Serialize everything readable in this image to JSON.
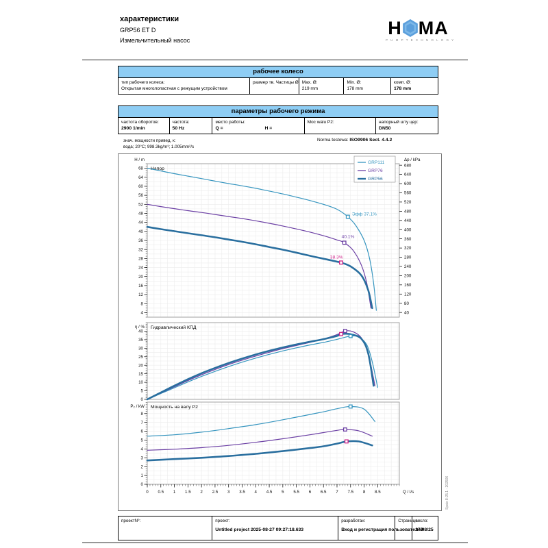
{
  "header": {
    "title": "характеристики",
    "model": "GRP56 ET D",
    "subtitle": "Измельчительный насос",
    "logo": {
      "left": "H",
      "right": "MA",
      "tagline": "P U M P   T E C H N O L O G Y",
      "hex_color": "#5b9fdc"
    }
  },
  "impeller": {
    "title": "рабочее колесо",
    "type_label": "тип рабочего колеса:",
    "type_value": "Открытая многолопастная с режущим устройством",
    "particle_label": "размер тв. Частицы   Ø:",
    "max_label": "Max.   Ø:",
    "max_value": "219 mm",
    "min_label": "Min.   Ø:",
    "min_value": "178 mm",
    "comp_label": "комп.   Ø:",
    "comp_value": "178 mm"
  },
  "operating": {
    "title": "параметры рабочего режима",
    "speed_label": "частота оборотов:",
    "speed_value": "2900 1/min",
    "freq_label": "частота:",
    "freq_value": "50 Hz",
    "duty_label": "место работы:",
    "duty_q": "Q =",
    "duty_h": "H =",
    "shaft_label": "Moc walu P2:",
    "outlet_label": "напорный шту цер:",
    "outlet_value": "DN50"
  },
  "notes": {
    "ref_label": "знач. мощности привед. к:",
    "ref_value": "вода; 20°C; 998.3kg/m³; 1.005mm²/s",
    "norm_label": "Norma testowa:",
    "norm_value": "ISO9906 Sect. 4.4.2"
  },
  "side_note": "Spaix 8-25.1 - 202506",
  "footer": {
    "project_no_label": "проектNº:",
    "project_label": "проект:",
    "project_value": "Untitled project 2025-08-27 09:27:18.633",
    "author_label": "разработан:",
    "author_value": "Вход и регистрация пользователей",
    "page_label": "Страница:",
    "date_label": "число:",
    "date_value": "27/08/25"
  },
  "chart_data": {
    "type": "line",
    "x": {
      "label": "Q / l/s",
      "min": 0,
      "max": 9.3,
      "tick_min": 0,
      "tick_max": 8.5,
      "tick_step": 0.5,
      "minor_step": 0.1,
      "grid_step": 0.25
    },
    "legend": {
      "position": "top-right",
      "entries": [
        {
          "label": "GRP111",
          "color": "#3695bf"
        },
        {
          "label": "GRP76",
          "color": "#6b3fa4"
        },
        {
          "label": "GRP56",
          "color": "#2a6f9f"
        }
      ]
    },
    "panels": [
      {
        "title": "Напор",
        "ylabel": "H / m",
        "ymin": 2,
        "ymax": 70,
        "tick_min": 4,
        "tick_max": 68,
        "tick_step": 4,
        "minor_step": 1,
        "grid_step": 2,
        "right_axis": {
          "label": "Δp / kPa",
          "tick_min": 40,
          "tick_max": 680,
          "tick_step": 40,
          "kpa_per_m": 9.8066
        },
        "series": [
          {
            "name": "GRP111",
            "color": "#3695bf",
            "width": 1.2,
            "points": [
              [
                0,
                68
              ],
              [
                0.5,
                66.8
              ],
              [
                1,
                65.6
              ],
              [
                1.5,
                64.5
              ],
              [
                2,
                63.4
              ],
              [
                2.5,
                62.3
              ],
              [
                3,
                61.2
              ],
              [
                3.5,
                60.2
              ],
              [
                4,
                59.1
              ],
              [
                4.5,
                57.9
              ],
              [
                5,
                56.6
              ],
              [
                5.5,
                55.2
              ],
              [
                6,
                53.7
              ],
              [
                6.5,
                52
              ],
              [
                7,
                49.8
              ],
              [
                7.4,
                46.5
              ],
              [
                7.7,
                42.5
              ],
              [
                8,
                36
              ],
              [
                8.2,
                28
              ],
              [
                8.35,
                17
              ],
              [
                8.45,
                5
              ]
            ],
            "bep": [
              7.4,
              46.5
            ],
            "bep_color": "#3695bf",
            "bep_label": "Эфф  37.1%",
            "bep_offset": [
              6,
              -2
            ]
          },
          {
            "name": "GRP76",
            "color": "#6b3fa4",
            "width": 1.2,
            "points": [
              [
                0,
                52
              ],
              [
                0.5,
                51
              ],
              [
                1,
                50.1
              ],
              [
                1.5,
                49.2
              ],
              [
                2,
                48.4
              ],
              [
                2.5,
                47.5
              ],
              [
                3,
                46.6
              ],
              [
                3.5,
                45.7
              ],
              [
                4,
                44.7
              ],
              [
                4.5,
                43.6
              ],
              [
                5,
                42.4
              ],
              [
                5.5,
                41.1
              ],
              [
                6,
                39.7
              ],
              [
                6.5,
                38.1
              ],
              [
                7,
                36.2
              ],
              [
                7.27,
                35
              ],
              [
                7.6,
                31.5
              ],
              [
                7.9,
                25
              ],
              [
                8.1,
                17
              ],
              [
                8.25,
                6
              ]
            ],
            "bep": [
              7.27,
              35
            ],
            "bep_color": "#6b3fa4",
            "bep_label": "40.1%",
            "bep_offset": [
              -4,
              -7
            ]
          },
          {
            "name": "GRP56",
            "color": "#2a6f9f",
            "width": 2.6,
            "points": [
              [
                0,
                42
              ],
              [
                0.5,
                41
              ],
              [
                1,
                40.1
              ],
              [
                1.5,
                39.2
              ],
              [
                2,
                38.3
              ],
              [
                2.5,
                37.4
              ],
              [
                3,
                36.4
              ],
              [
                3.5,
                35.4
              ],
              [
                4,
                34.3
              ],
              [
                4.5,
                33.1
              ],
              [
                5,
                31.9
              ],
              [
                5.5,
                30.6
              ],
              [
                6,
                29.2
              ],
              [
                6.5,
                27.9
              ],
              [
                7,
                26.6
              ],
              [
                7.15,
                26.2
              ],
              [
                7.5,
                24.5
              ],
              [
                7.9,
                20.5
              ],
              [
                8.15,
                14
              ],
              [
                8.3,
                6
              ]
            ],
            "bep": [
              7.15,
              26.2
            ],
            "bep_color": "#cc2288",
            "bep_label": "38.3%",
            "bep_offset": [
              -16,
              -6
            ]
          }
        ]
      },
      {
        "title": "Гидравлический КПД",
        "ylabel": "η / %",
        "ymin": 0,
        "ymax": 45,
        "tick_min": 0,
        "tick_max": 40,
        "tick_step": 5,
        "minor_step": 1,
        "grid_step": 2.5,
        "series": [
          {
            "name": "GRP111",
            "color": "#3695bf",
            "width": 1.2,
            "points": [
              [
                0,
                0
              ],
              [
                0.5,
                3.4
              ],
              [
                1,
                6.8
              ],
              [
                1.5,
                10.2
              ],
              [
                2,
                13.4
              ],
              [
                2.5,
                16.4
              ],
              [
                3,
                19.2
              ],
              [
                3.5,
                21.8
              ],
              [
                4,
                24.2
              ],
              [
                4.5,
                26.4
              ],
              [
                5,
                28.4
              ],
              [
                5.5,
                30.2
              ],
              [
                6,
                31.9
              ],
              [
                6.5,
                33.4
              ],
              [
                7,
                35.2
              ],
              [
                7.5,
                37.1
              ],
              [
                7.8,
                36.5
              ],
              [
                8.1,
                32
              ],
              [
                8.3,
                22
              ],
              [
                8.5,
                7
              ]
            ],
            "bep": [
              7.5,
              37.1
            ],
            "bep_color": "#3695bf"
          },
          {
            "name": "GRP76",
            "color": "#6b3fa4",
            "width": 1.2,
            "points": [
              [
                0,
                0
              ],
              [
                0.5,
                3.7
              ],
              [
                1,
                7.4
              ],
              [
                1.5,
                11
              ],
              [
                2,
                14.4
              ],
              [
                2.5,
                17.5
              ],
              [
                3,
                20.4
              ],
              [
                3.5,
                23
              ],
              [
                4,
                25.4
              ],
              [
                4.5,
                27.6
              ],
              [
                5,
                29.7
              ],
              [
                5.5,
                31.6
              ],
              [
                6,
                33.4
              ],
              [
                6.5,
                35.4
              ],
              [
                7,
                38
              ],
              [
                7.3,
                40.1
              ],
              [
                7.6,
                39.6
              ],
              [
                7.9,
                36
              ],
              [
                8.15,
                27
              ],
              [
                8.4,
                8
              ]
            ],
            "bep": [
              7.3,
              40.1
            ],
            "bep_color": "#6b3fa4"
          },
          {
            "name": "GRP56",
            "color": "#2a6f9f",
            "width": 2.6,
            "points": [
              [
                0,
                0
              ],
              [
                0.5,
                4
              ],
              [
                1,
                8
              ],
              [
                1.5,
                11.8
              ],
              [
                2,
                15.3
              ],
              [
                2.5,
                18.4
              ],
              [
                3,
                21.3
              ],
              [
                3.5,
                23.9
              ],
              [
                4,
                26.3
              ],
              [
                4.5,
                28.5
              ],
              [
                5,
                30.4
              ],
              [
                5.5,
                32.2
              ],
              [
                6,
                33.8
              ],
              [
                6.5,
                35.3
              ],
              [
                7,
                37.2
              ],
              [
                7.15,
                38.3
              ],
              [
                7.5,
                38.2
              ],
              [
                7.9,
                35.5
              ],
              [
                8.15,
                27
              ],
              [
                8.35,
                8
              ]
            ],
            "bep": [
              7.15,
              38.3
            ],
            "bep_color": "#cc2288"
          }
        ]
      },
      {
        "title": "Мощность на валу  P2",
        "ylabel": "P₂ / kW",
        "ymin": 0,
        "ymax": 9.3,
        "tick_min": 0,
        "tick_max": 8,
        "tick_step": 1,
        "minor_step": 0.25,
        "grid_step": 0.5,
        "series": [
          {
            "name": "GRP111",
            "color": "#3695bf",
            "width": 1.2,
            "points": [
              [
                0,
                5.45
              ],
              [
                1,
                5.6
              ],
              [
                2,
                5.9
              ],
              [
                3,
                6.3
              ],
              [
                4,
                6.75
              ],
              [
                5,
                7.3
              ],
              [
                6,
                7.9
              ],
              [
                6.5,
                8.2
              ],
              [
                7,
                8.55
              ],
              [
                7.5,
                8.8
              ],
              [
                8,
                8.5
              ],
              [
                8.4,
                7.1
              ]
            ],
            "bep": [
              7.5,
              8.8
            ],
            "bep_color": "#3695bf"
          },
          {
            "name": "GRP76",
            "color": "#6b3fa4",
            "width": 1.2,
            "points": [
              [
                0,
                3.85
              ],
              [
                1,
                3.97
              ],
              [
                2,
                4.15
              ],
              [
                3,
                4.4
              ],
              [
                4,
                4.75
              ],
              [
                5,
                5.15
              ],
              [
                6,
                5.6
              ],
              [
                6.5,
                5.85
              ],
              [
                7,
                6.1
              ],
              [
                7.3,
                6.2
              ],
              [
                7.8,
                6.05
              ],
              [
                8.3,
                5.45
              ]
            ],
            "bep": [
              7.3,
              6.2
            ],
            "bep_color": "#6b3fa4"
          },
          {
            "name": "GRP56",
            "color": "#2a6f9f",
            "width": 2.6,
            "points": [
              [
                0,
                2.7
              ],
              [
                1,
                2.85
              ],
              [
                2,
                3.0
              ],
              [
                3,
                3.2
              ],
              [
                4,
                3.45
              ],
              [
                5,
                3.75
              ],
              [
                6,
                4.1
              ],
              [
                6.5,
                4.3
              ],
              [
                7,
                4.6
              ],
              [
                7.35,
                4.85
              ],
              [
                7.8,
                4.85
              ],
              [
                8.3,
                4.4
              ]
            ],
            "bep": [
              7.35,
              4.85
            ],
            "bep_color": "#cc2288"
          }
        ]
      }
    ]
  }
}
